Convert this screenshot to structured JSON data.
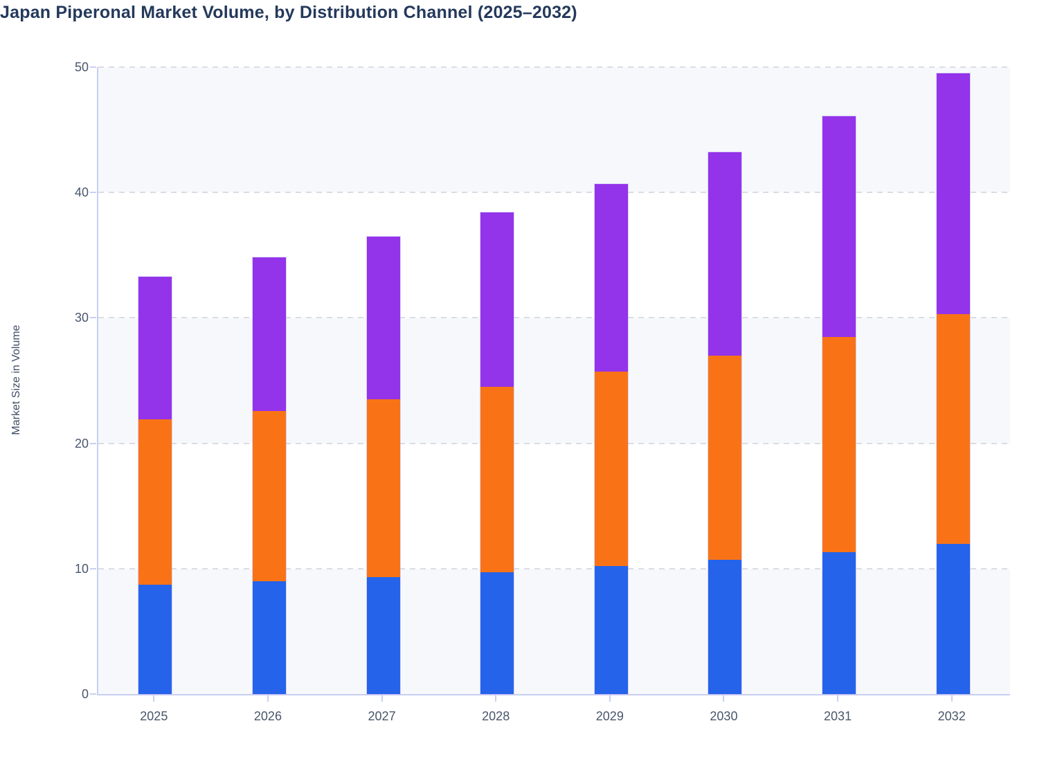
{
  "title": "Japan Piperonal Market Volume, by Distribution Channel (2025–2032)",
  "y_axis": {
    "label": "Market Size in Volume",
    "tick_labels": [
      "0",
      "10",
      "20",
      "30",
      "40",
      "50"
    ],
    "min": 0,
    "max": 50
  },
  "x_axis": {
    "tick_labels": [
      "2025",
      "2026",
      "2027",
      "2028",
      "2029",
      "2030",
      "2031",
      "2032"
    ]
  },
  "colors": {
    "series_blue": "#2563eb",
    "series_orange": "#f97316",
    "series_purple": "#9333ea",
    "plot_band": "#f6f8fb",
    "gridline": "#dadde3",
    "axis_line": "#c8cff2",
    "title_text": "#24395b",
    "tick_text": "#49566b"
  },
  "chart_data": {
    "type": "bar",
    "stacked": true,
    "title": "Japan Piperonal Market Volume, by Distribution Channel (2025–2032)",
    "xlabel": "",
    "ylabel": "Market Size in Volume",
    "ylim": [
      0,
      50
    ],
    "grid": true,
    "legend": "none",
    "categories": [
      "2025",
      "2026",
      "2027",
      "2028",
      "2029",
      "2030",
      "2031",
      "2032"
    ],
    "series": [
      {
        "name": "blue",
        "color": "#2563eb",
        "values": [
          8.7,
          9.0,
          9.3,
          9.7,
          10.2,
          10.7,
          11.3,
          12.0
        ]
      },
      {
        "name": "orange",
        "color": "#f97316",
        "values": [
          13.2,
          13.6,
          14.2,
          14.8,
          15.5,
          16.3,
          17.2,
          18.3
        ]
      },
      {
        "name": "purple",
        "color": "#9333ea",
        "values": [
          11.4,
          12.2,
          13.0,
          13.9,
          15.0,
          16.2,
          17.6,
          19.2
        ]
      }
    ],
    "stack_totals": [
      33.3,
      34.8,
      36.5,
      38.4,
      40.7,
      43.2,
      46.1,
      49.5
    ]
  }
}
